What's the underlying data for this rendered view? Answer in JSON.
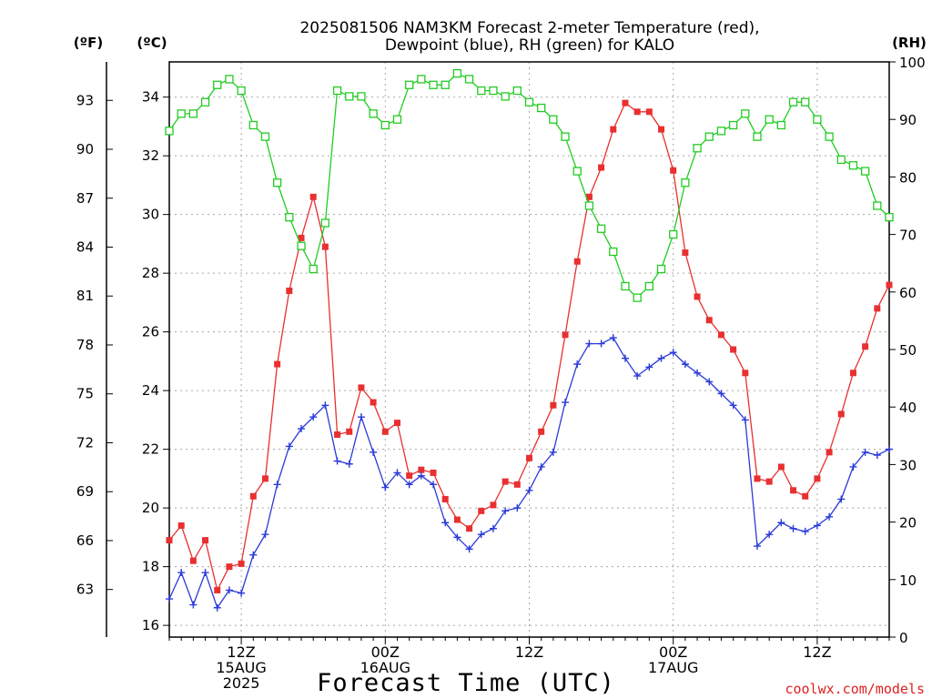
{
  "chart_data": {
    "type": "line",
    "title_line1": "2025081506 NAM3KM Forecast 2-meter Temperature (red),",
    "title_line2": "Dewpoint (blue), RH (green) for KALO",
    "left_unit_f": "(ºF)",
    "left_unit_c": "(ºC)",
    "right_unit": "(RH)",
    "xlabel": "Forecast Time (UTC)",
    "credit": "coolwx.com/models",
    "celsius_ticks": [
      "16",
      "18",
      "20",
      "22",
      "24",
      "26",
      "28",
      "30",
      "32",
      "34"
    ],
    "fahrenheit_ticks": [
      "63",
      "66",
      "69",
      "72",
      "75",
      "78",
      "81",
      "84",
      "87",
      "90",
      "93"
    ],
    "rh_ticks": [
      "0",
      "10",
      "20",
      "30",
      "40",
      "50",
      "60",
      "70",
      "80",
      "90",
      "100"
    ],
    "x_ticks": [
      {
        "hour": 12,
        "lines": [
          "12Z",
          "15AUG",
          "2025"
        ]
      },
      {
        "hour": 24,
        "lines": [
          "00Z",
          "16AUG"
        ]
      },
      {
        "hour": 36,
        "lines": [
          "12Z"
        ]
      },
      {
        "hour": 48,
        "lines": [
          "00Z",
          "17AUG"
        ]
      },
      {
        "hour": 60,
        "lines": [
          "12Z"
        ]
      }
    ],
    "x_range_hours": [
      6,
      66
    ],
    "ylim_c": [
      15.6,
      35.2
    ],
    "ylim_rh": [
      0,
      100
    ],
    "grid": true,
    "hours": [
      6,
      7,
      8,
      9,
      10,
      11,
      12,
      13,
      14,
      15,
      16,
      17,
      18,
      19,
      20,
      21,
      22,
      23,
      24,
      25,
      26,
      27,
      28,
      29,
      30,
      31,
      32,
      33,
      34,
      35,
      36,
      37,
      38,
      39,
      40,
      41,
      42,
      43,
      44,
      45,
      46,
      47,
      48,
      49,
      50,
      51,
      52,
      53,
      54,
      55,
      56,
      57,
      58,
      59,
      60,
      61,
      62,
      63,
      64,
      65,
      66
    ],
    "series": [
      {
        "name": "Temperature",
        "color": "#e83030",
        "marker": "filled-square",
        "values": [
          18.9,
          19.4,
          18.2,
          18.9,
          17.2,
          18.0,
          18.1,
          20.4,
          21.0,
          24.9,
          27.4,
          29.2,
          30.6,
          28.9,
          22.5,
          22.6,
          24.1,
          23.6,
          22.6,
          22.9,
          21.1,
          21.3,
          21.2,
          20.3,
          19.6,
          19.3,
          19.9,
          20.1,
          20.9,
          20.8,
          21.7,
          22.6,
          23.5,
          25.9,
          28.4,
          30.6,
          31.6,
          32.9,
          33.8,
          33.5,
          33.5,
          32.9,
          31.5,
          28.7,
          27.2,
          26.4,
          25.9,
          25.4,
          24.6,
          21.0,
          20.9,
          21.4,
          20.6,
          20.4,
          21.0,
          21.9,
          23.2,
          24.6,
          25.5,
          26.8,
          27.6
        ]
      },
      {
        "name": "Dewpoint",
        "color": "#2a3ad8",
        "marker": "plus",
        "values": [
          16.9,
          17.8,
          16.7,
          17.8,
          16.6,
          17.2,
          17.1,
          18.4,
          19.1,
          20.8,
          22.1,
          22.7,
          23.1,
          23.5,
          21.6,
          21.5,
          23.1,
          21.9,
          20.7,
          21.2,
          20.8,
          21.1,
          20.8,
          19.5,
          19.0,
          18.6,
          19.1,
          19.3,
          19.9,
          20.0,
          20.6,
          21.4,
          21.9,
          23.6,
          24.9,
          25.6,
          25.6,
          25.8,
          25.1,
          24.5,
          24.8,
          25.1,
          25.3,
          24.9,
          24.6,
          24.3,
          23.9,
          23.5,
          23.0,
          18.7,
          19.1,
          19.5,
          19.3,
          19.2,
          19.4,
          19.7,
          20.3,
          21.4,
          21.9,
          21.8,
          22.0
        ]
      },
      {
        "name": "RH",
        "color": "#22cc22",
        "marker": "open-square",
        "values": [
          88,
          91,
          91,
          93,
          96,
          97,
          95,
          89,
          87,
          79,
          73,
          68,
          64,
          72,
          95,
          94,
          94,
          91,
          89,
          90,
          96,
          97,
          96,
          96,
          98,
          97,
          95,
          95,
          94,
          95,
          93,
          92,
          90,
          87,
          81,
          75,
          71,
          67,
          61,
          59,
          61,
          64,
          70,
          79,
          85,
          87,
          88,
          89,
          91,
          87,
          90,
          89,
          93,
          93,
          90,
          87,
          83,
          82,
          81,
          75,
          73
        ]
      }
    ]
  }
}
